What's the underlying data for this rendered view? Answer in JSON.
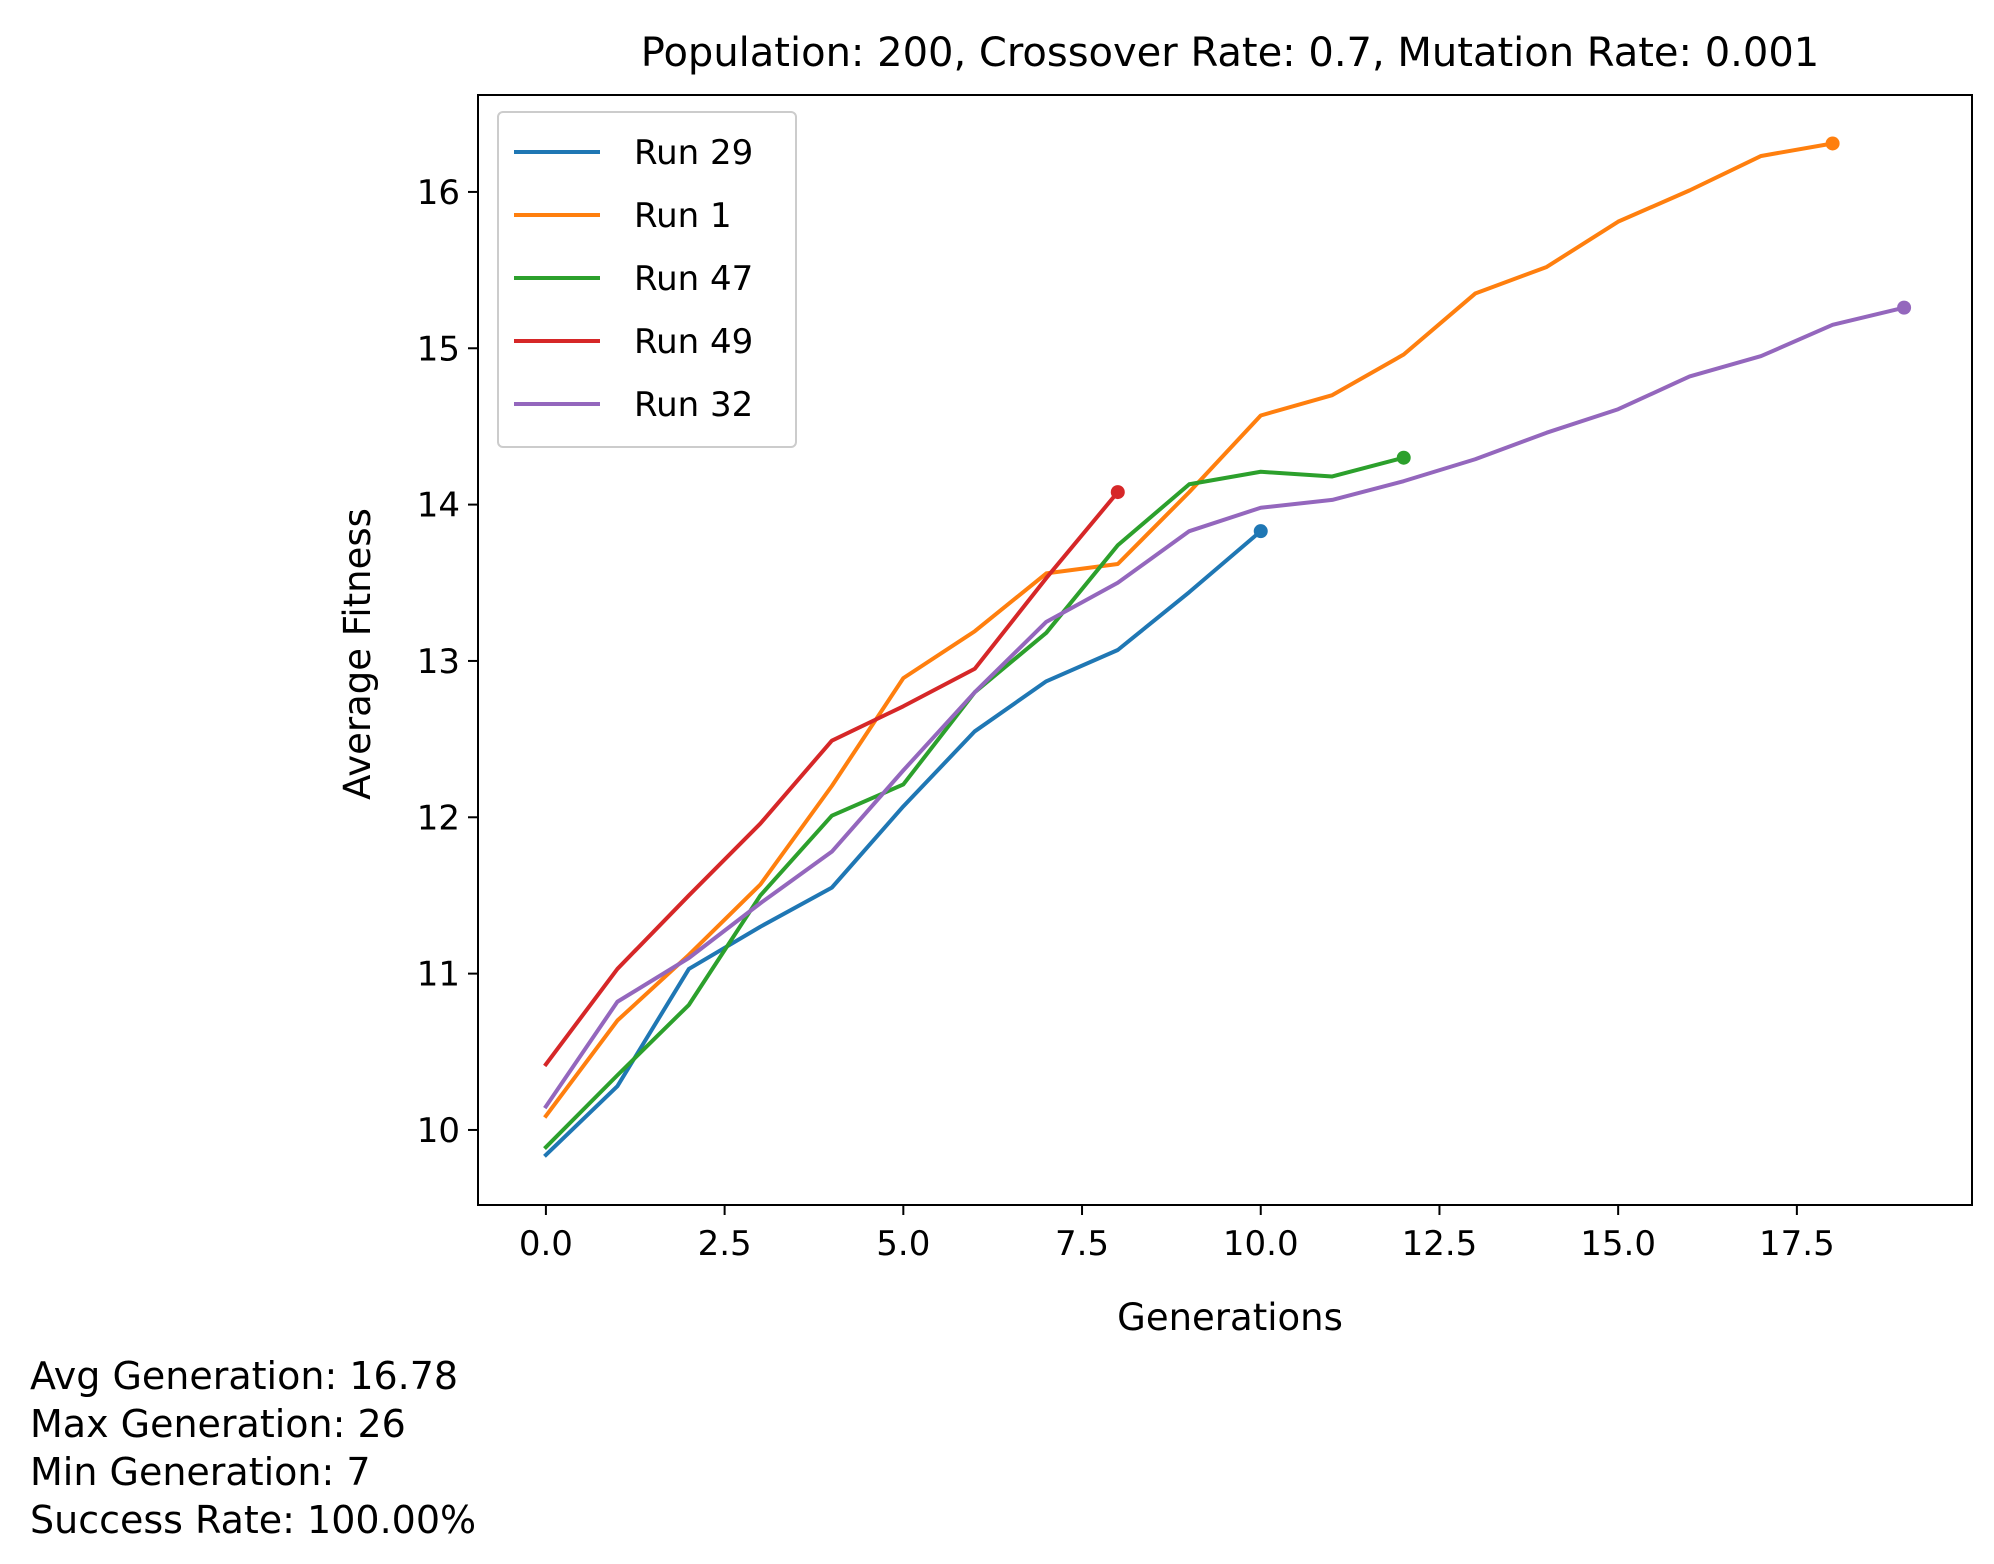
{
  "chart_data": {
    "type": "line",
    "title": "Population: 200, Crossover Rate: 0.7, Mutation Rate: 0.001",
    "xlabel": "Generations",
    "ylabel": "Average Fitness",
    "xlim": [
      -0.95,
      19.95
    ],
    "ylim": [
      9.52,
      16.62
    ],
    "xticks": [
      0.0,
      2.5,
      5.0,
      7.5,
      10.0,
      12.5,
      15.0,
      17.5
    ],
    "xtick_labels": [
      "0.0",
      "2.5",
      "5.0",
      "7.5",
      "10.0",
      "12.5",
      "15.0",
      "17.5"
    ],
    "yticks": [
      10,
      11,
      12,
      13,
      14,
      15,
      16
    ],
    "ytick_labels": [
      "10",
      "11",
      "12",
      "13",
      "14",
      "15",
      "16"
    ],
    "grid": false,
    "legend_position": "top-left",
    "end_markers": true,
    "series": [
      {
        "name": "Run 29",
        "color": "#1f77b4",
        "x": [
          0,
          1,
          2,
          3,
          4,
          5,
          6,
          7,
          8,
          9,
          10
        ],
        "y": [
          9.84,
          10.28,
          11.03,
          11.3,
          11.55,
          12.07,
          12.55,
          12.87,
          13.07,
          13.44,
          13.83
        ]
      },
      {
        "name": "Run 1",
        "color": "#ff7f0e",
        "x": [
          0,
          1,
          2,
          3,
          4,
          5,
          6,
          7,
          8,
          9,
          10,
          11,
          12,
          13,
          14,
          15,
          16,
          17,
          18
        ],
        "y": [
          10.09,
          10.7,
          11.12,
          11.57,
          12.2,
          12.89,
          13.19,
          13.56,
          13.62,
          14.08,
          14.57,
          14.7,
          14.96,
          15.35,
          15.52,
          15.81,
          16.01,
          16.23,
          16.31
        ]
      },
      {
        "name": "Run 47",
        "color": "#2ca02c",
        "x": [
          0,
          1,
          2,
          3,
          4,
          5,
          6,
          7,
          8,
          9,
          10,
          11,
          12
        ],
        "y": [
          9.89,
          10.35,
          10.8,
          11.5,
          12.01,
          12.21,
          12.8,
          13.18,
          13.74,
          14.13,
          14.21,
          14.18,
          14.3
        ]
      },
      {
        "name": "Run 49",
        "color": "#d62728",
        "x": [
          0,
          1,
          2,
          3,
          4,
          5,
          6,
          7,
          8
        ],
        "y": [
          10.42,
          11.03,
          11.5,
          11.96,
          12.49,
          12.71,
          12.95,
          13.53,
          14.08
        ]
      },
      {
        "name": "Run 32",
        "color": "#9467bd",
        "x": [
          0,
          1,
          2,
          3,
          4,
          5,
          6,
          7,
          8,
          9,
          10,
          11,
          12,
          13,
          14,
          15,
          16,
          17,
          18,
          19
        ],
        "y": [
          10.15,
          10.82,
          11.1,
          11.45,
          11.78,
          12.3,
          12.8,
          13.25,
          13.5,
          13.83,
          13.98,
          14.03,
          14.15,
          14.29,
          14.46,
          14.61,
          14.82,
          14.95,
          15.15,
          15.26
        ]
      }
    ]
  },
  "stats": {
    "avg_generation": "Avg Generation: 16.78",
    "max_generation": "Max Generation: 26",
    "min_generation": "Min Generation: 7",
    "success_rate": "Success Rate: 100.00%"
  }
}
